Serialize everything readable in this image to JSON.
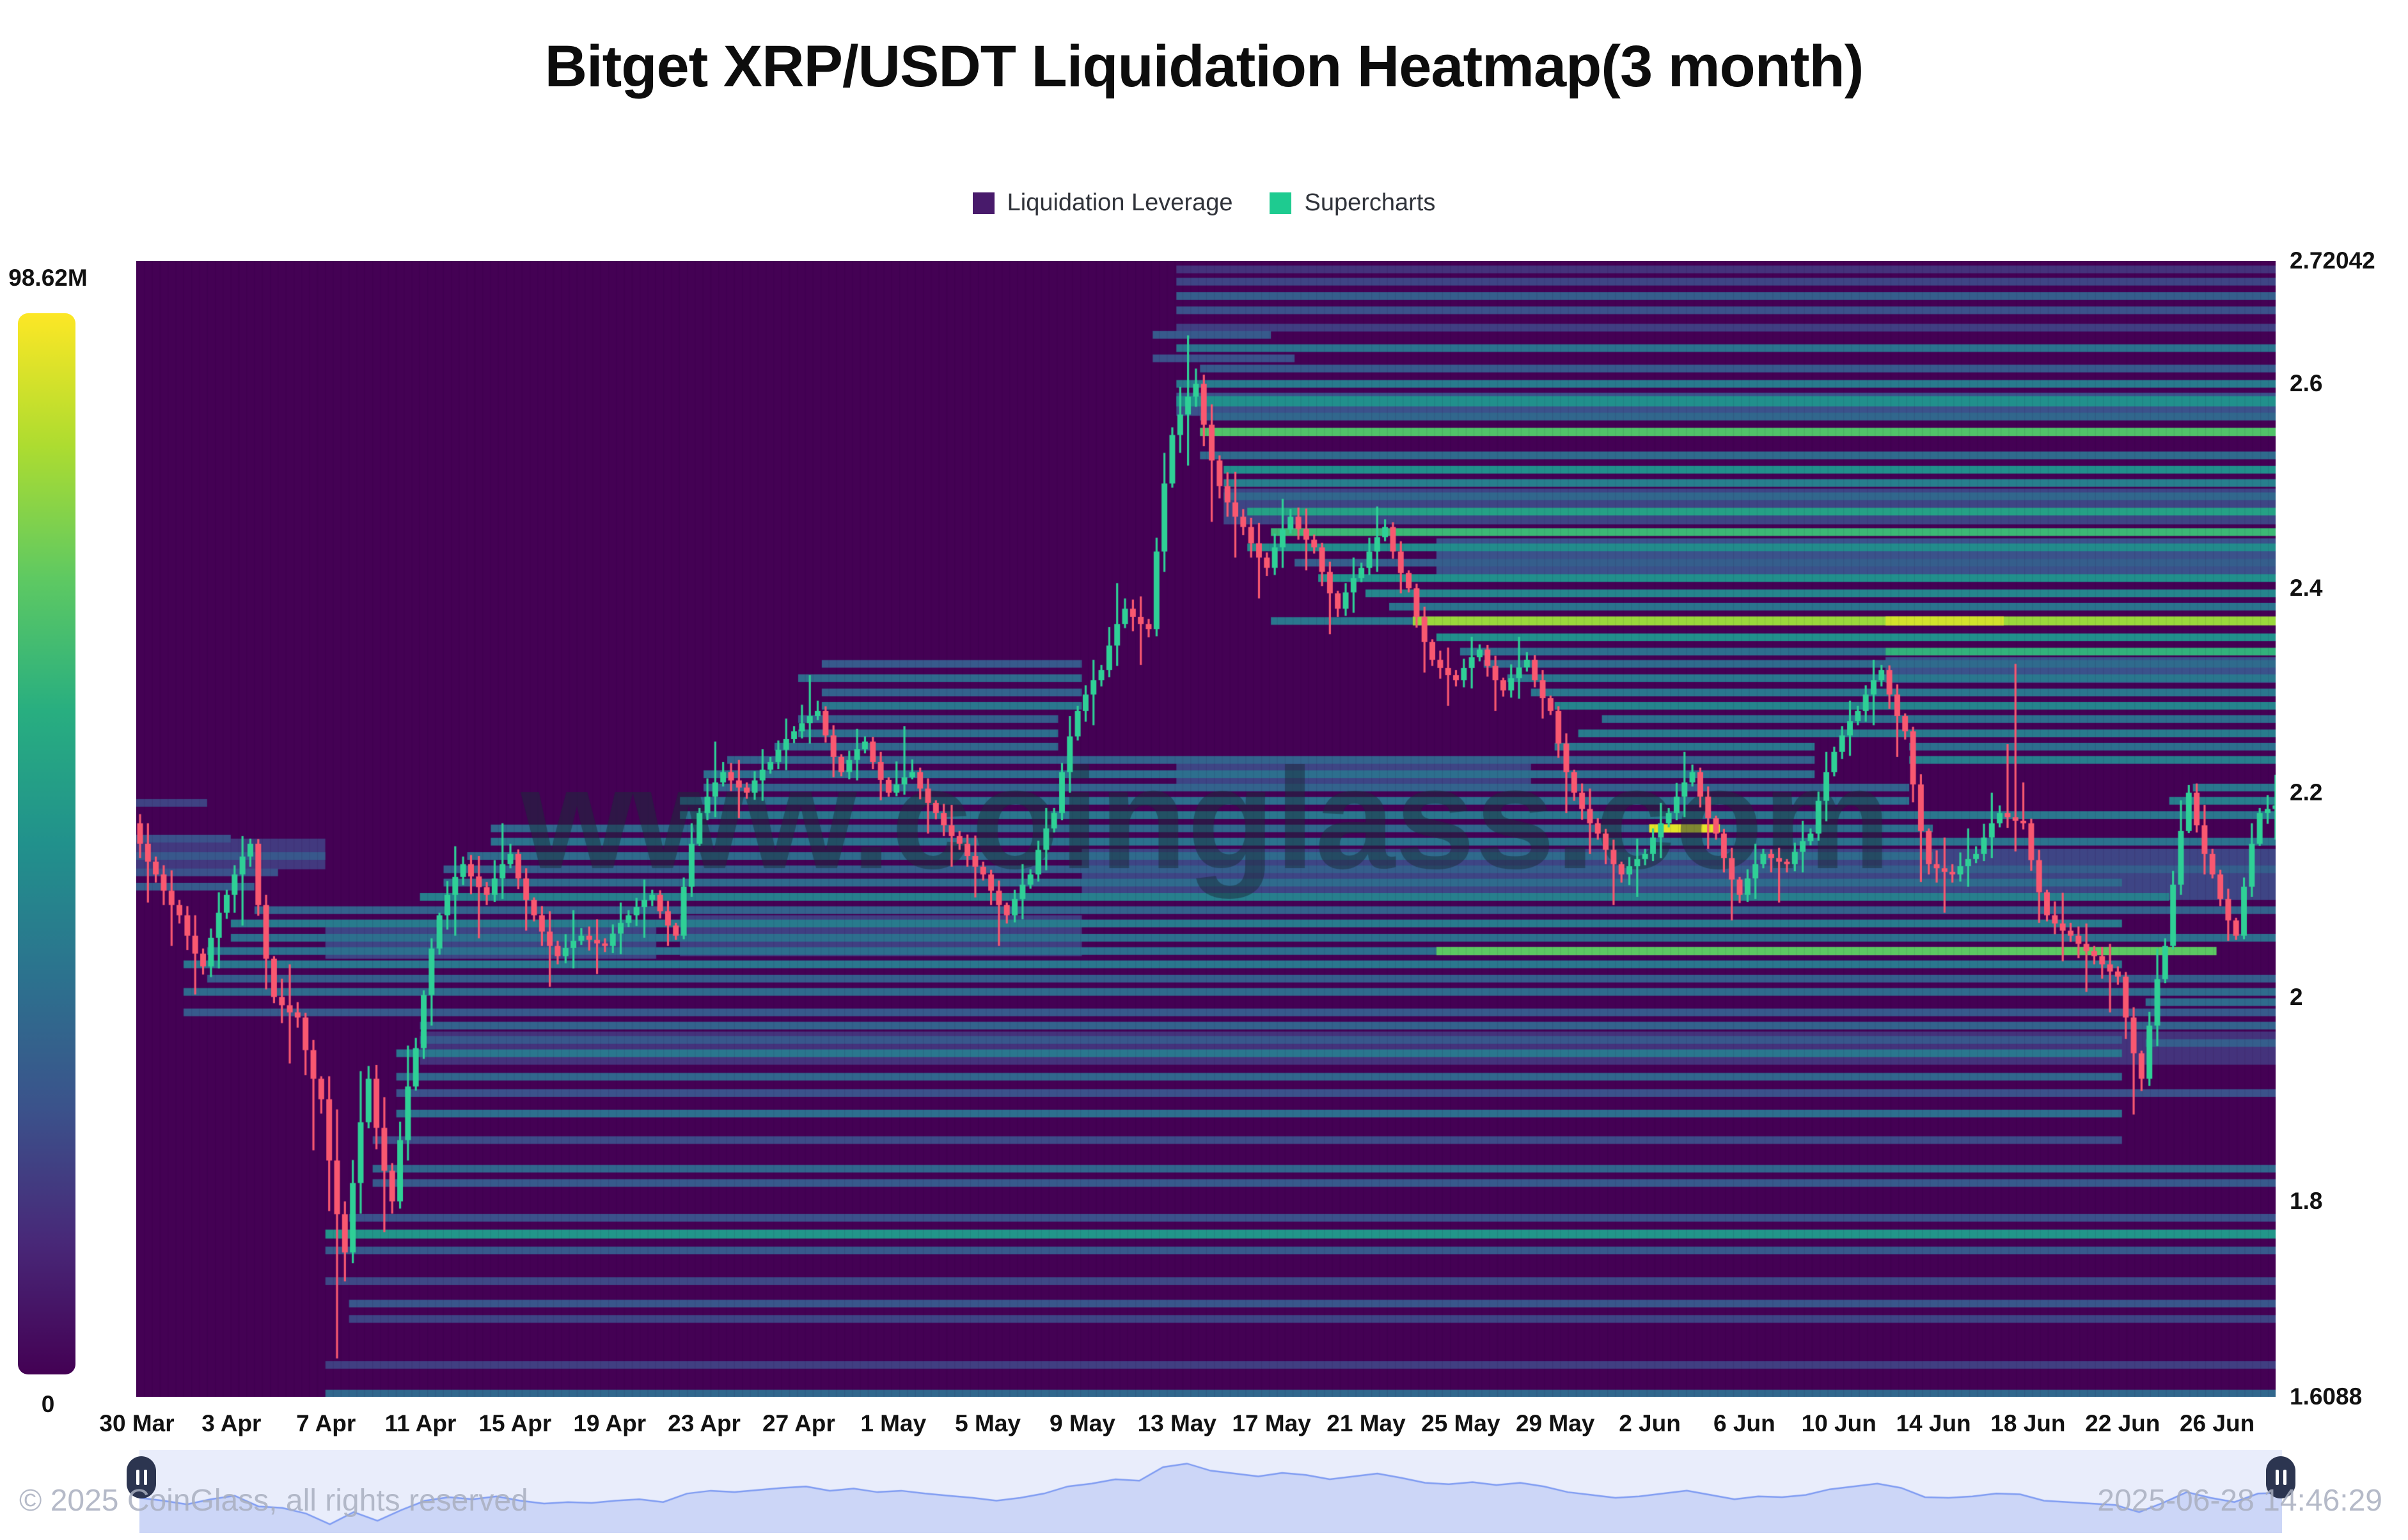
{
  "title": "Bitget XRP/USDT Liquidation Heatmap(3 month)",
  "legend": {
    "items": [
      {
        "label": "Liquidation Leverage",
        "color": "#481a6b"
      },
      {
        "label": "Supercharts",
        "color": "#1ecb90"
      }
    ]
  },
  "colorbar": {
    "max_label": "98.62M",
    "min_label": "0",
    "stops": [
      "#440154",
      "#482878",
      "#3b528b",
      "#2c728e",
      "#21918c",
      "#28ae80",
      "#5ec962",
      "#addc30",
      "#fde725"
    ]
  },
  "watermark": "www.coinglass.com",
  "footer": {
    "copyright": "© 2025 CoinGlass, all rights reserved",
    "timestamp": "2025-06-28 14:46:29"
  },
  "navigator": {
    "bg": "#e9edfb",
    "fill": "#ccd6f7",
    "line": "#7e9bf2",
    "handle": "#2c3550"
  },
  "chart_data": {
    "type": "heatmap",
    "title": "Bitget XRP/USDT Liquidation Heatmap(3 month)",
    "intensity_max_label": "98.62M",
    "intensity_min_label": "0",
    "price_max": 2.72042,
    "price_min": 1.6088,
    "days": 91,
    "start_label": "30 Mar",
    "end_label": "28 Jun",
    "x_labels": [
      "30 Mar",
      "3 Apr",
      "7 Apr",
      "11 Apr",
      "15 Apr",
      "19 Apr",
      "23 Apr",
      "27 Apr",
      "1 May",
      "5 May",
      "9 May",
      "13 May",
      "17 May",
      "21 May",
      "25 May",
      "29 May",
      "2 Jun",
      "6 Jun",
      "10 Jun",
      "14 Jun",
      "18 Jun",
      "22 Jun",
      "26 Jun"
    ],
    "y_ticks": [
      {
        "label": "2.72042",
        "value": 2.72042
      },
      {
        "label": "2.6",
        "value": 2.6
      },
      {
        "label": "2.4",
        "value": 2.4
      },
      {
        "label": "2.2",
        "value": 2.2
      },
      {
        "label": "2",
        "value": 2.0
      },
      {
        "label": "1.8",
        "value": 1.8
      },
      {
        "label": "1.6088",
        "value": 1.6088
      }
    ],
    "colors": {
      "background": "#440154",
      "candle_up": "#2fd096",
      "candle_down": "#f95870"
    },
    "candles_ohlc": [
      [
        2.17,
        2.19,
        2.08,
        2.12
      ],
      [
        2.12,
        2.14,
        2.04,
        2.08
      ],
      [
        2.08,
        2.1,
        1.99,
        2.03
      ],
      [
        2.03,
        2.12,
        2.0,
        2.1
      ],
      [
        2.1,
        2.17,
        2.05,
        2.15
      ],
      [
        2.15,
        2.16,
        1.97,
        2.0
      ],
      [
        2.0,
        2.04,
        1.93,
        1.98
      ],
      [
        1.98,
        1.99,
        1.83,
        1.9
      ],
      [
        1.9,
        1.95,
        1.6088,
        1.75
      ],
      [
        1.75,
        1.97,
        1.72,
        1.92
      ],
      [
        1.92,
        1.95,
        1.74,
        1.8
      ],
      [
        1.8,
        1.99,
        1.78,
        1.95
      ],
      [
        1.95,
        2.09,
        1.92,
        2.08
      ],
      [
        2.08,
        2.16,
        2.04,
        2.13
      ],
      [
        2.13,
        2.15,
        2.05,
        2.1
      ],
      [
        2.1,
        2.18,
        2.08,
        2.14
      ],
      [
        2.14,
        2.15,
        2.05,
        2.08
      ],
      [
        2.08,
        2.1,
        2.0,
        2.04
      ],
      [
        2.04,
        2.09,
        2.02,
        2.06
      ],
      [
        2.06,
        2.08,
        2.02,
        2.05
      ],
      [
        2.05,
        2.1,
        2.03,
        2.08
      ],
      [
        2.08,
        2.12,
        2.05,
        2.1
      ],
      [
        2.1,
        2.11,
        2.04,
        2.06
      ],
      [
        2.06,
        2.2,
        2.05,
        2.18
      ],
      [
        2.18,
        2.26,
        2.16,
        2.22
      ],
      [
        2.22,
        2.24,
        2.17,
        2.2
      ],
      [
        2.2,
        2.25,
        2.18,
        2.23
      ],
      [
        2.23,
        2.28,
        2.21,
        2.26
      ],
      [
        2.26,
        2.32,
        2.24,
        2.28
      ],
      [
        2.28,
        2.29,
        2.2,
        2.22
      ],
      [
        2.22,
        2.27,
        2.2,
        2.25
      ],
      [
        2.25,
        2.26,
        2.18,
        2.2
      ],
      [
        2.2,
        2.27,
        2.19,
        2.22
      ],
      [
        2.22,
        2.23,
        2.15,
        2.18
      ],
      [
        2.18,
        2.2,
        2.12,
        2.15
      ],
      [
        2.15,
        2.17,
        2.09,
        2.12
      ],
      [
        2.12,
        2.13,
        2.04,
        2.08
      ],
      [
        2.08,
        2.14,
        2.06,
        2.12
      ],
      [
        2.12,
        2.2,
        2.1,
        2.18
      ],
      [
        2.18,
        2.3,
        2.16,
        2.28
      ],
      [
        2.28,
        2.34,
        2.25,
        2.32
      ],
      [
        2.32,
        2.42,
        2.3,
        2.38
      ],
      [
        2.38,
        2.4,
        2.32,
        2.36
      ],
      [
        2.36,
        2.58,
        2.34,
        2.55
      ],
      [
        2.55,
        2.66,
        2.5,
        2.6
      ],
      [
        2.6,
        2.62,
        2.44,
        2.5
      ],
      [
        2.5,
        2.53,
        2.42,
        2.46
      ],
      [
        2.46,
        2.48,
        2.38,
        2.42
      ],
      [
        2.42,
        2.5,
        2.4,
        2.47
      ],
      [
        2.47,
        2.49,
        2.41,
        2.44
      ],
      [
        2.44,
        2.45,
        2.34,
        2.38
      ],
      [
        2.38,
        2.44,
        2.36,
        2.42
      ],
      [
        2.42,
        2.49,
        2.4,
        2.46
      ],
      [
        2.46,
        2.47,
        2.38,
        2.4
      ],
      [
        2.4,
        2.41,
        2.3,
        2.33
      ],
      [
        2.33,
        2.35,
        2.28,
        2.31
      ],
      [
        2.31,
        2.36,
        2.29,
        2.34
      ],
      [
        2.34,
        2.35,
        2.27,
        2.3
      ],
      [
        2.3,
        2.36,
        2.28,
        2.33
      ],
      [
        2.33,
        2.34,
        2.26,
        2.28
      ],
      [
        2.28,
        2.29,
        2.16,
        2.2
      ],
      [
        2.2,
        2.22,
        2.13,
        2.16
      ],
      [
        2.16,
        2.17,
        2.08,
        2.12
      ],
      [
        2.12,
        2.16,
        2.09,
        2.14
      ],
      [
        2.14,
        2.2,
        2.12,
        2.18
      ],
      [
        2.18,
        2.25,
        2.16,
        2.22
      ],
      [
        2.22,
        2.23,
        2.13,
        2.16
      ],
      [
        2.16,
        2.17,
        2.06,
        2.1
      ],
      [
        2.1,
        2.16,
        2.08,
        2.14
      ],
      [
        2.14,
        2.15,
        2.09,
        2.13
      ],
      [
        2.13,
        2.18,
        2.11,
        2.16
      ],
      [
        2.16,
        2.26,
        2.14,
        2.24
      ],
      [
        2.24,
        2.3,
        2.22,
        2.28
      ],
      [
        2.28,
        2.34,
        2.25,
        2.32
      ],
      [
        2.32,
        2.33,
        2.22,
        2.26
      ],
      [
        2.26,
        2.27,
        2.08,
        2.13
      ],
      [
        2.13,
        2.16,
        2.08,
        2.12
      ],
      [
        2.12,
        2.17,
        2.1,
        2.14
      ],
      [
        2.14,
        2.21,
        2.12,
        2.18
      ],
      [
        2.18,
        2.33,
        2.14,
        2.17
      ],
      [
        2.17,
        2.18,
        2.05,
        2.08
      ],
      [
        2.08,
        2.11,
        2.03,
        2.06
      ],
      [
        2.06,
        2.08,
        2.0,
        2.04
      ],
      [
        2.04,
        2.06,
        1.98,
        2.02
      ],
      [
        2.02,
        2.03,
        1.86,
        1.92
      ],
      [
        1.92,
        2.08,
        1.9,
        2.05
      ],
      [
        2.05,
        2.23,
        2.04,
        2.2
      ],
      [
        2.2,
        2.22,
        2.1,
        2.12
      ],
      [
        2.12,
        2.13,
        2.04,
        2.06
      ],
      [
        2.06,
        2.2,
        2.05,
        2.18
      ],
      [
        2.18,
        2.22,
        2.15,
        2.19
      ]
    ],
    "liquidation_bands": [
      [
        2.43,
        55,
        91,
        0.3,
        60
      ],
      [
        2.48,
        46,
        91,
        0.26,
        56
      ],
      [
        2.32,
        74,
        91,
        0.3,
        40
      ],
      [
        2.22,
        44,
        59,
        0.26,
        48
      ],
      [
        2.12,
        40,
        91,
        0.26,
        80
      ],
      [
        2.06,
        23,
        40,
        0.24,
        64
      ],
      [
        2.055,
        8,
        22,
        0.26,
        56
      ],
      [
        2.14,
        0,
        8,
        0.22,
        48
      ],
      [
        1.95,
        12,
        91,
        0.2,
        52
      ],
      [
        2.58,
        44,
        91,
        0.3,
        36
      ],
      [
        1.612,
        8,
        91,
        0.4
      ],
      [
        1.64,
        8,
        91,
        0.24
      ],
      [
        1.685,
        9,
        91,
        0.26
      ],
      [
        1.7,
        9,
        91,
        0.32
      ],
      [
        1.722,
        8,
        91,
        0.27
      ],
      [
        1.752,
        8,
        91,
        0.34
      ],
      [
        1.768,
        8,
        91,
        0.62,
        14
      ],
      [
        1.784,
        9,
        91,
        0.3
      ],
      [
        1.818,
        10,
        91,
        0.34
      ],
      [
        1.832,
        10,
        91,
        0.4
      ],
      [
        1.86,
        10,
        84,
        0.28
      ],
      [
        1.886,
        11,
        84,
        0.44
      ],
      [
        1.906,
        11,
        91,
        0.3
      ],
      [
        1.922,
        11,
        84,
        0.4
      ],
      [
        1.945,
        11,
        84,
        0.48
      ],
      [
        1.958,
        12,
        84,
        0.33
      ],
      [
        1.972,
        12,
        91,
        0.38
      ],
      [
        1.985,
        2,
        91,
        0.34
      ],
      [
        1.995,
        85,
        91,
        0.42
      ],
      [
        1.955,
        85,
        91,
        0.36
      ],
      [
        2.005,
        2,
        91,
        0.42
      ],
      [
        2.018,
        3,
        91,
        0.36
      ],
      [
        2.032,
        2,
        84,
        0.48
      ],
      [
        2.045,
        3,
        55,
        0.44
      ],
      [
        2.045,
        55,
        88,
        0.8,
        13
      ],
      [
        2.058,
        4,
        91,
        0.44
      ],
      [
        2.072,
        4,
        84,
        0.5
      ],
      [
        2.085,
        5,
        91,
        0.38
      ],
      [
        2.098,
        12,
        86,
        0.52
      ],
      [
        2.112,
        13,
        84,
        0.42
      ],
      [
        2.125,
        13,
        91,
        0.36
      ],
      [
        2.138,
        14,
        76,
        0.42
      ],
      [
        2.152,
        15,
        91,
        0.46
      ],
      [
        2.165,
        15,
        64,
        0.4
      ],
      [
        2.165,
        64,
        67,
        0.97,
        13
      ],
      [
        2.165,
        67,
        76,
        0.44
      ],
      [
        2.178,
        23,
        91,
        0.48
      ],
      [
        2.192,
        23,
        75,
        0.44
      ],
      [
        2.192,
        86,
        91,
        0.52
      ],
      [
        2.205,
        24,
        75,
        0.38
      ],
      [
        2.205,
        87,
        91,
        0.48
      ],
      [
        2.218,
        24,
        71,
        0.44
      ],
      [
        2.232,
        25,
        71,
        0.38
      ],
      [
        2.232,
        75,
        91,
        0.52
      ],
      [
        2.245,
        27,
        39,
        0.4
      ],
      [
        2.245,
        60,
        71,
        0.48
      ],
      [
        2.245,
        75,
        91,
        0.44
      ],
      [
        2.258,
        28,
        39,
        0.44
      ],
      [
        2.258,
        61,
        91,
        0.5
      ],
      [
        2.272,
        28,
        39,
        0.36
      ],
      [
        2.272,
        62,
        91,
        0.44
      ],
      [
        2.285,
        29,
        40,
        0.48
      ],
      [
        2.285,
        60,
        91,
        0.54
      ],
      [
        2.298,
        29,
        40,
        0.38
      ],
      [
        2.298,
        59,
        91,
        0.48
      ],
      [
        2.108,
        0,
        5,
        0.35
      ],
      [
        2.122,
        0,
        6,
        0.3
      ],
      [
        2.155,
        0,
        4,
        0.3
      ],
      [
        2.138,
        0,
        8,
        0.33
      ],
      [
        2.19,
        0,
        3,
        0.25
      ],
      [
        2.312,
        28,
        40,
        0.42
      ],
      [
        2.312,
        58,
        91,
        0.48
      ],
      [
        2.326,
        29,
        40,
        0.34
      ],
      [
        2.326,
        57,
        91,
        0.42
      ],
      [
        2.338,
        56,
        74,
        0.44
      ],
      [
        2.338,
        74,
        91,
        0.72
      ],
      [
        2.352,
        55,
        91,
        0.6
      ],
      [
        2.368,
        48,
        54,
        0.48
      ],
      [
        2.368,
        54,
        91,
        0.88,
        14
      ],
      [
        2.368,
        74,
        79,
        0.95,
        14
      ],
      [
        2.382,
        53,
        91,
        0.46
      ],
      [
        2.395,
        52,
        91,
        0.55
      ],
      [
        2.41,
        50,
        91,
        0.6
      ],
      [
        2.425,
        49,
        91,
        0.36
      ],
      [
        2.44,
        47,
        91,
        0.58
      ],
      [
        2.455,
        48,
        91,
        0.74
      ],
      [
        2.475,
        47,
        91,
        0.66
      ],
      [
        2.49,
        46,
        91,
        0.4
      ],
      [
        2.503,
        46,
        91,
        0.52
      ],
      [
        2.516,
        46,
        91,
        0.6
      ],
      [
        2.53,
        45,
        91,
        0.42
      ],
      [
        2.553,
        45,
        91,
        0.78,
        13
      ],
      [
        2.568,
        45,
        91,
        0.4
      ],
      [
        2.583,
        44,
        91,
        0.6,
        16
      ],
      [
        2.6,
        44,
        91,
        0.5
      ],
      [
        2.615,
        45,
        91,
        0.34
      ],
      [
        2.635,
        44,
        91,
        0.46
      ],
      [
        2.655,
        44,
        91,
        0.24
      ],
      [
        2.672,
        44,
        91,
        0.3
      ],
      [
        2.686,
        44,
        91,
        0.36
      ],
      [
        2.7,
        44,
        91,
        0.26
      ],
      [
        2.712,
        44,
        91,
        0.2
      ],
      [
        2.648,
        43,
        48,
        0.34
      ],
      [
        2.625,
        43,
        49,
        0.3
      ]
    ]
  }
}
